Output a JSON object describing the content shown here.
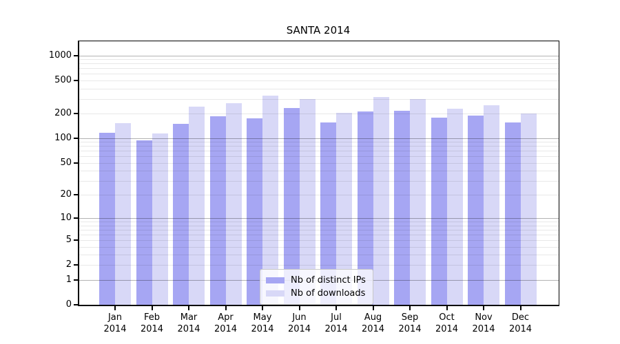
{
  "chart_data": {
    "type": "bar",
    "title": "SANTA 2014",
    "scale": "log1p",
    "categories": [
      "Jan",
      "Feb",
      "Mar",
      "Apr",
      "May",
      "Jun",
      "Jul",
      "Aug",
      "Sep",
      "Oct",
      "Nov",
      "Dec"
    ],
    "year_label": "2014",
    "series": [
      {
        "name": "Nb of distinct IPs",
        "color": "#a6a6f3",
        "values": [
          116,
          95,
          150,
          185,
          175,
          233,
          154,
          212,
          213,
          176,
          189,
          156
        ]
      },
      {
        "name": "Nb of downloads",
        "color": "#d8d8f7",
        "values": [
          153,
          115,
          240,
          265,
          330,
          295,
          204,
          318,
          298,
          228,
          249,
          199
        ]
      }
    ],
    "y_ticks": [
      0,
      1,
      2,
      5,
      10,
      20,
      50,
      100,
      200,
      500,
      1000
    ],
    "ylim": [
      0,
      1480
    ],
    "xlabel": "",
    "ylabel": "",
    "grid": {
      "on": true,
      "major_values": [
        1,
        10,
        100,
        1000
      ],
      "major_color": "rgba(0,0,0,0.30)",
      "minor_color": "rgba(0,0,0,0.09)"
    },
    "legend": {
      "position": "lower-center-inside"
    }
  }
}
